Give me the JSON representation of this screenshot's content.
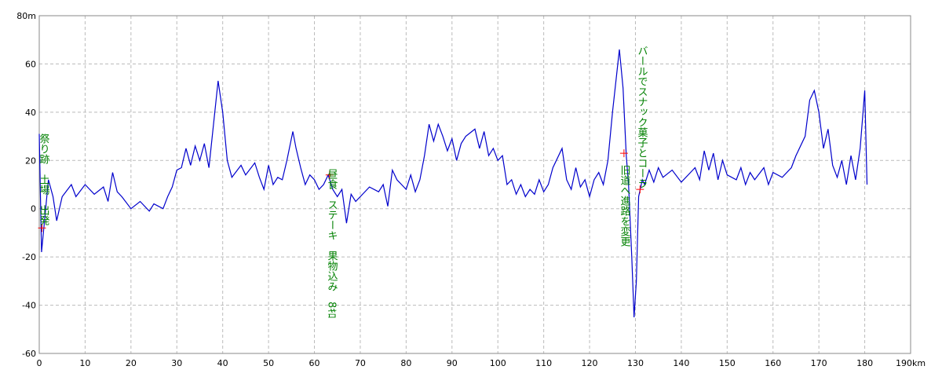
{
  "chart_data": {
    "type": "line",
    "color": "#0000cc",
    "grid": true,
    "xlim": [
      0,
      190
    ],
    "ylim": [
      -60,
      80
    ],
    "xticks": [
      0,
      10,
      20,
      30,
      40,
      50,
      60,
      70,
      80,
      90,
      100,
      110,
      120,
      130,
      140,
      150,
      160,
      170,
      180,
      {
        "value": 190,
        "label": "190km"
      }
    ],
    "yticks": [
      -60,
      -40,
      -20,
      0,
      20,
      40,
      60,
      {
        "value": 80,
        "label": "80m"
      }
    ],
    "x": [
      0,
      0.5,
      1,
      2,
      3,
      3.8,
      5,
      7,
      8,
      10,
      12,
      14,
      15,
      16,
      17,
      18,
      20,
      22,
      24,
      25,
      27,
      28,
      29,
      30,
      31,
      32,
      33,
      34,
      35,
      36,
      37,
      38,
      39,
      40,
      41,
      42,
      44,
      45,
      47,
      48,
      49,
      50,
      51,
      52,
      53,
      54,
      55.3,
      56,
      57,
      58,
      59,
      60,
      61,
      62,
      63,
      64,
      65,
      66,
      67,
      68,
      69,
      70,
      72,
      74,
      75,
      76,
      77,
      78,
      79,
      80,
      81,
      82,
      83,
      84,
      85,
      86,
      87,
      88,
      89,
      90,
      91,
      92,
      93,
      95,
      96,
      97,
      98,
      99,
      100,
      101,
      102,
      103,
      104,
      105,
      106,
      107,
      108,
      109,
      110,
      111,
      112,
      114,
      115,
      116,
      117,
      118,
      119,
      120,
      121,
      122,
      123,
      124,
      125,
      126.5,
      127.3,
      128,
      128.5,
      129.2,
      129.7,
      130.2,
      130.7,
      131.5,
      132,
      133,
      134,
      135,
      136,
      138,
      140,
      142,
      143,
      144,
      145,
      146,
      147,
      148,
      149,
      150,
      152,
      153,
      154,
      155,
      156,
      158,
      159,
      160,
      162,
      164,
      165,
      167,
      168,
      169,
      170,
      171,
      172,
      173,
      174,
      175,
      176,
      177,
      178,
      179,
      180,
      180.5
    ],
    "values": [
      31,
      -18,
      -8,
      12,
      5,
      -5,
      5,
      10,
      5,
      10,
      6,
      9,
      3,
      15,
      7,
      5,
      0,
      3,
      -1,
      2,
      0,
      5,
      9,
      16,
      17,
      25,
      18,
      26,
      20,
      27,
      17,
      35,
      53,
      40,
      20,
      13,
      18,
      14,
      19,
      13,
      8,
      18,
      10,
      13,
      12,
      20,
      32,
      25,
      17,
      10,
      14,
      12,
      8,
      10,
      14,
      8,
      5,
      8,
      -6,
      6,
      3,
      5,
      9,
      7,
      10,
      1,
      16,
      12,
      10,
      8,
      14,
      7,
      12,
      22,
      35,
      28,
      35,
      30,
      24,
      29,
      20,
      27,
      30,
      33,
      25,
      32,
      22,
      25,
      20,
      22,
      10,
      12,
      6,
      10,
      5,
      8,
      6,
      12,
      7,
      10,
      17,
      25,
      12,
      8,
      17,
      9,
      12,
      5,
      12,
      15,
      10,
      20,
      40,
      66,
      50,
      22,
      10,
      -20,
      -45,
      -30,
      5,
      12,
      10,
      16,
      11,
      17,
      13,
      16,
      11,
      15,
      17,
      12,
      24,
      16,
      23,
      12,
      20,
      14,
      12,
      17,
      10,
      15,
      12,
      17,
      10,
      15,
      13,
      17,
      22,
      30,
      45,
      49,
      40,
      25,
      33,
      18,
      13,
      20,
      10,
      22,
      12,
      25,
      49,
      10
    ],
    "annotations": [
      {
        "x": 0.6,
        "y": -8,
        "label": "祭り跡　土場　出発"
      },
      {
        "x": 63.3,
        "y": 14,
        "label": "昼食　ステーキ　果物込み　8ｷﾛ"
      },
      {
        "x": 127.5,
        "y": 23,
        "label": "旧道へ進路を変更"
      },
      {
        "x": 131,
        "y": 8,
        "label": "バールでスナック菓子とコーラ"
      }
    ]
  }
}
